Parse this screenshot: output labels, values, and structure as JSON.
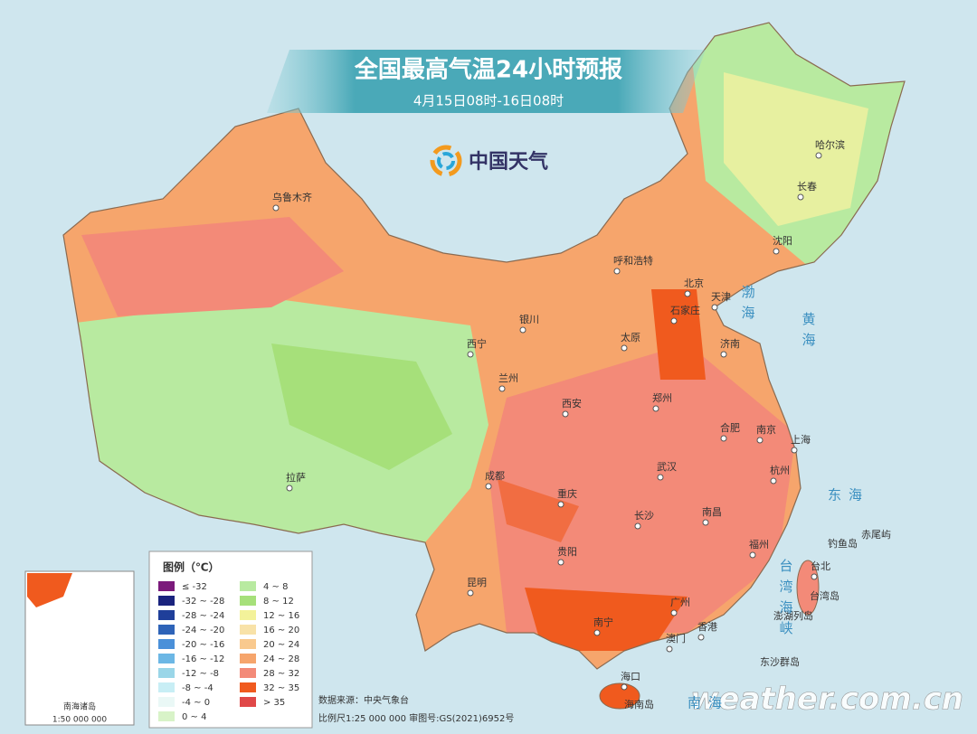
{
  "header": {
    "title": "全国最高气温24小时预报",
    "subtitle": "4月15日08时-16日08时",
    "brand": "中国天气"
  },
  "cities": [
    "乌鲁木齐",
    "哈尔滨",
    "长春",
    "沈阳",
    "呼和浩特",
    "北京",
    "天津",
    "石家庄",
    "银川",
    "太原",
    "济南",
    "西宁",
    "兰州",
    "郑州",
    "西安",
    "合肥",
    "南京",
    "上海",
    "拉萨",
    "成都",
    "武汉",
    "杭州",
    "重庆",
    "长沙",
    "南昌",
    "福州",
    "贵阳",
    "台北",
    "昆明",
    "广州",
    "南宁",
    "香港",
    "澳门",
    "海口"
  ],
  "islands": [
    "台湾岛",
    "海南岛",
    "钓鱼岛",
    "赤尾屿",
    "澎湖列岛",
    "东沙群岛"
  ],
  "seas": [
    "渤海",
    "黄海",
    "东海",
    "台湾海峡",
    "南海"
  ],
  "legend": {
    "title": "图例（℃）",
    "items": [
      {
        "label": "≤ -32",
        "color": "#7b1a7b"
      },
      {
        "label": "-32 ~ -28",
        "color": "#1a237e"
      },
      {
        "label": "-28 ~ -24",
        "color": "#1f3f9a"
      },
      {
        "label": "-24 ~ -20",
        "color": "#2e63b8"
      },
      {
        "label": "-20 ~ -16",
        "color": "#4a90d9"
      },
      {
        "label": "-16 ~ -12",
        "color": "#6cb7e5"
      },
      {
        "label": "-12 ~ -8",
        "color": "#9ad6e8"
      },
      {
        "label": "-8 ~ -4",
        "color": "#c8eef5"
      },
      {
        "label": "-4 ~ 0",
        "color": "#eaf8f6"
      },
      {
        "label": "0 ~ 4",
        "color": "#d8f3c8"
      },
      {
        "label": "4 ~ 8",
        "color": "#b8eaa0"
      },
      {
        "label": "8 ~ 12",
        "color": "#a6e07a"
      },
      {
        "label": "12 ~ 16",
        "color": "#f3f29a"
      },
      {
        "label": "16 ~ 20",
        "color": "#f8e2a8"
      },
      {
        "label": "20 ~ 24",
        "color": "#f9c98e"
      },
      {
        "label": "24 ~ 28",
        "color": "#f6a56c"
      },
      {
        "label": "28 ~ 32",
        "color": "#f38a78"
      },
      {
        "label": "32 ~ 35",
        "color": "#f05a1e"
      },
      {
        "label": "> 35",
        "color": "#e04848"
      }
    ]
  },
  "footer": {
    "source": "数据来源：中央气象台",
    "scale": "比例尺1:25 000 000    审图号:GS(2021)6952号",
    "watermark": "weather.com.cn"
  },
  "inset": {
    "label": "南海诸岛",
    "scale": "1:50 000 000"
  }
}
